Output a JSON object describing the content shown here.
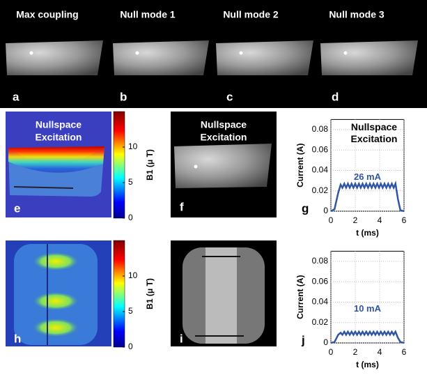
{
  "top_panels": {
    "titles": [
      "Max coupling",
      "Null mode 1",
      "Null mode 2",
      "Null mode 3"
    ],
    "labels": [
      "a",
      "b",
      "c",
      "d"
    ]
  },
  "image_panels": {
    "labels": [
      "e",
      "f",
      "h",
      "i"
    ],
    "caption_lines": [
      "Nullspace",
      "Excitation"
    ]
  },
  "colorbars": [
    {
      "label": "B1 (μ T)",
      "clim": [
        0,
        15
      ],
      "ticks": [
        0,
        5,
        10
      ]
    },
    {
      "label": "B1 (μ T)",
      "clim": [
        0,
        15
      ],
      "ticks": [
        0,
        5,
        10
      ]
    }
  ],
  "chart_data": [
    {
      "type": "line",
      "panel_label": "g",
      "title_lines": [
        "Nullspace",
        "Excitation"
      ],
      "annotation": "26 mA",
      "xlabel": "t (ms)",
      "ylabel": "Current (A)",
      "xlim": [
        0,
        6
      ],
      "ylim": [
        0,
        0.09
      ],
      "xticks": [
        0,
        2,
        4,
        6
      ],
      "yticks": [
        0,
        0.02,
        0.04,
        0.06,
        0.08
      ],
      "grid": true,
      "series": [
        {
          "color": "#2f55a4",
          "x": [
            0,
            0.3,
            0.6,
            0.8,
            0.95,
            1.1,
            1.25,
            1.4,
            1.55,
            1.7,
            1.85,
            2,
            2.15,
            2.3,
            2.45,
            2.6,
            2.75,
            2.9,
            3.05,
            3.2,
            3.35,
            3.5,
            3.65,
            3.8,
            3.95,
            4.1,
            4.25,
            4.4,
            4.55,
            4.7,
            4.85,
            5,
            5.15,
            5.3,
            5.5,
            5.7,
            6
          ],
          "values": [
            0,
            0.002,
            0.018,
            0.026,
            0.023,
            0.027,
            0.023,
            0.027,
            0.023,
            0.027,
            0.023,
            0.027,
            0.023,
            0.027,
            0.023,
            0.027,
            0.023,
            0.027,
            0.023,
            0.027,
            0.023,
            0.027,
            0.023,
            0.027,
            0.023,
            0.027,
            0.023,
            0.027,
            0.023,
            0.027,
            0.023,
            0.027,
            0.023,
            0.027,
            0.012,
            0.001,
            0
          ]
        }
      ]
    },
    {
      "type": "line",
      "panel_label": "j",
      "annotation": "10 mA",
      "xlabel": "t (ms)",
      "ylabel": "Current (A)",
      "xlim": [
        0,
        6
      ],
      "ylim": [
        0,
        0.09
      ],
      "xticks": [
        0,
        2,
        4,
        6
      ],
      "yticks": [
        0,
        0.02,
        0.04,
        0.06,
        0.08
      ],
      "grid": true,
      "series": [
        {
          "color": "#2f55a4",
          "x": [
            0,
            0.3,
            0.6,
            0.8,
            0.95,
            1.1,
            1.25,
            1.4,
            1.55,
            1.7,
            1.85,
            2,
            2.15,
            2.3,
            2.45,
            2.6,
            2.75,
            2.9,
            3.05,
            3.2,
            3.35,
            3.5,
            3.65,
            3.8,
            3.95,
            4.1,
            4.25,
            4.4,
            4.55,
            4.7,
            4.85,
            5,
            5.15,
            5.3,
            5.5,
            5.7,
            6
          ],
          "values": [
            0,
            0.001,
            0.008,
            0.01,
            0.008,
            0.011,
            0.008,
            0.011,
            0.008,
            0.011,
            0.008,
            0.011,
            0.008,
            0.011,
            0.008,
            0.011,
            0.008,
            0.011,
            0.008,
            0.011,
            0.008,
            0.011,
            0.008,
            0.011,
            0.008,
            0.011,
            0.008,
            0.011,
            0.008,
            0.011,
            0.008,
            0.011,
            0.008,
            0.011,
            0.005,
            0.001,
            0
          ]
        }
      ]
    }
  ]
}
